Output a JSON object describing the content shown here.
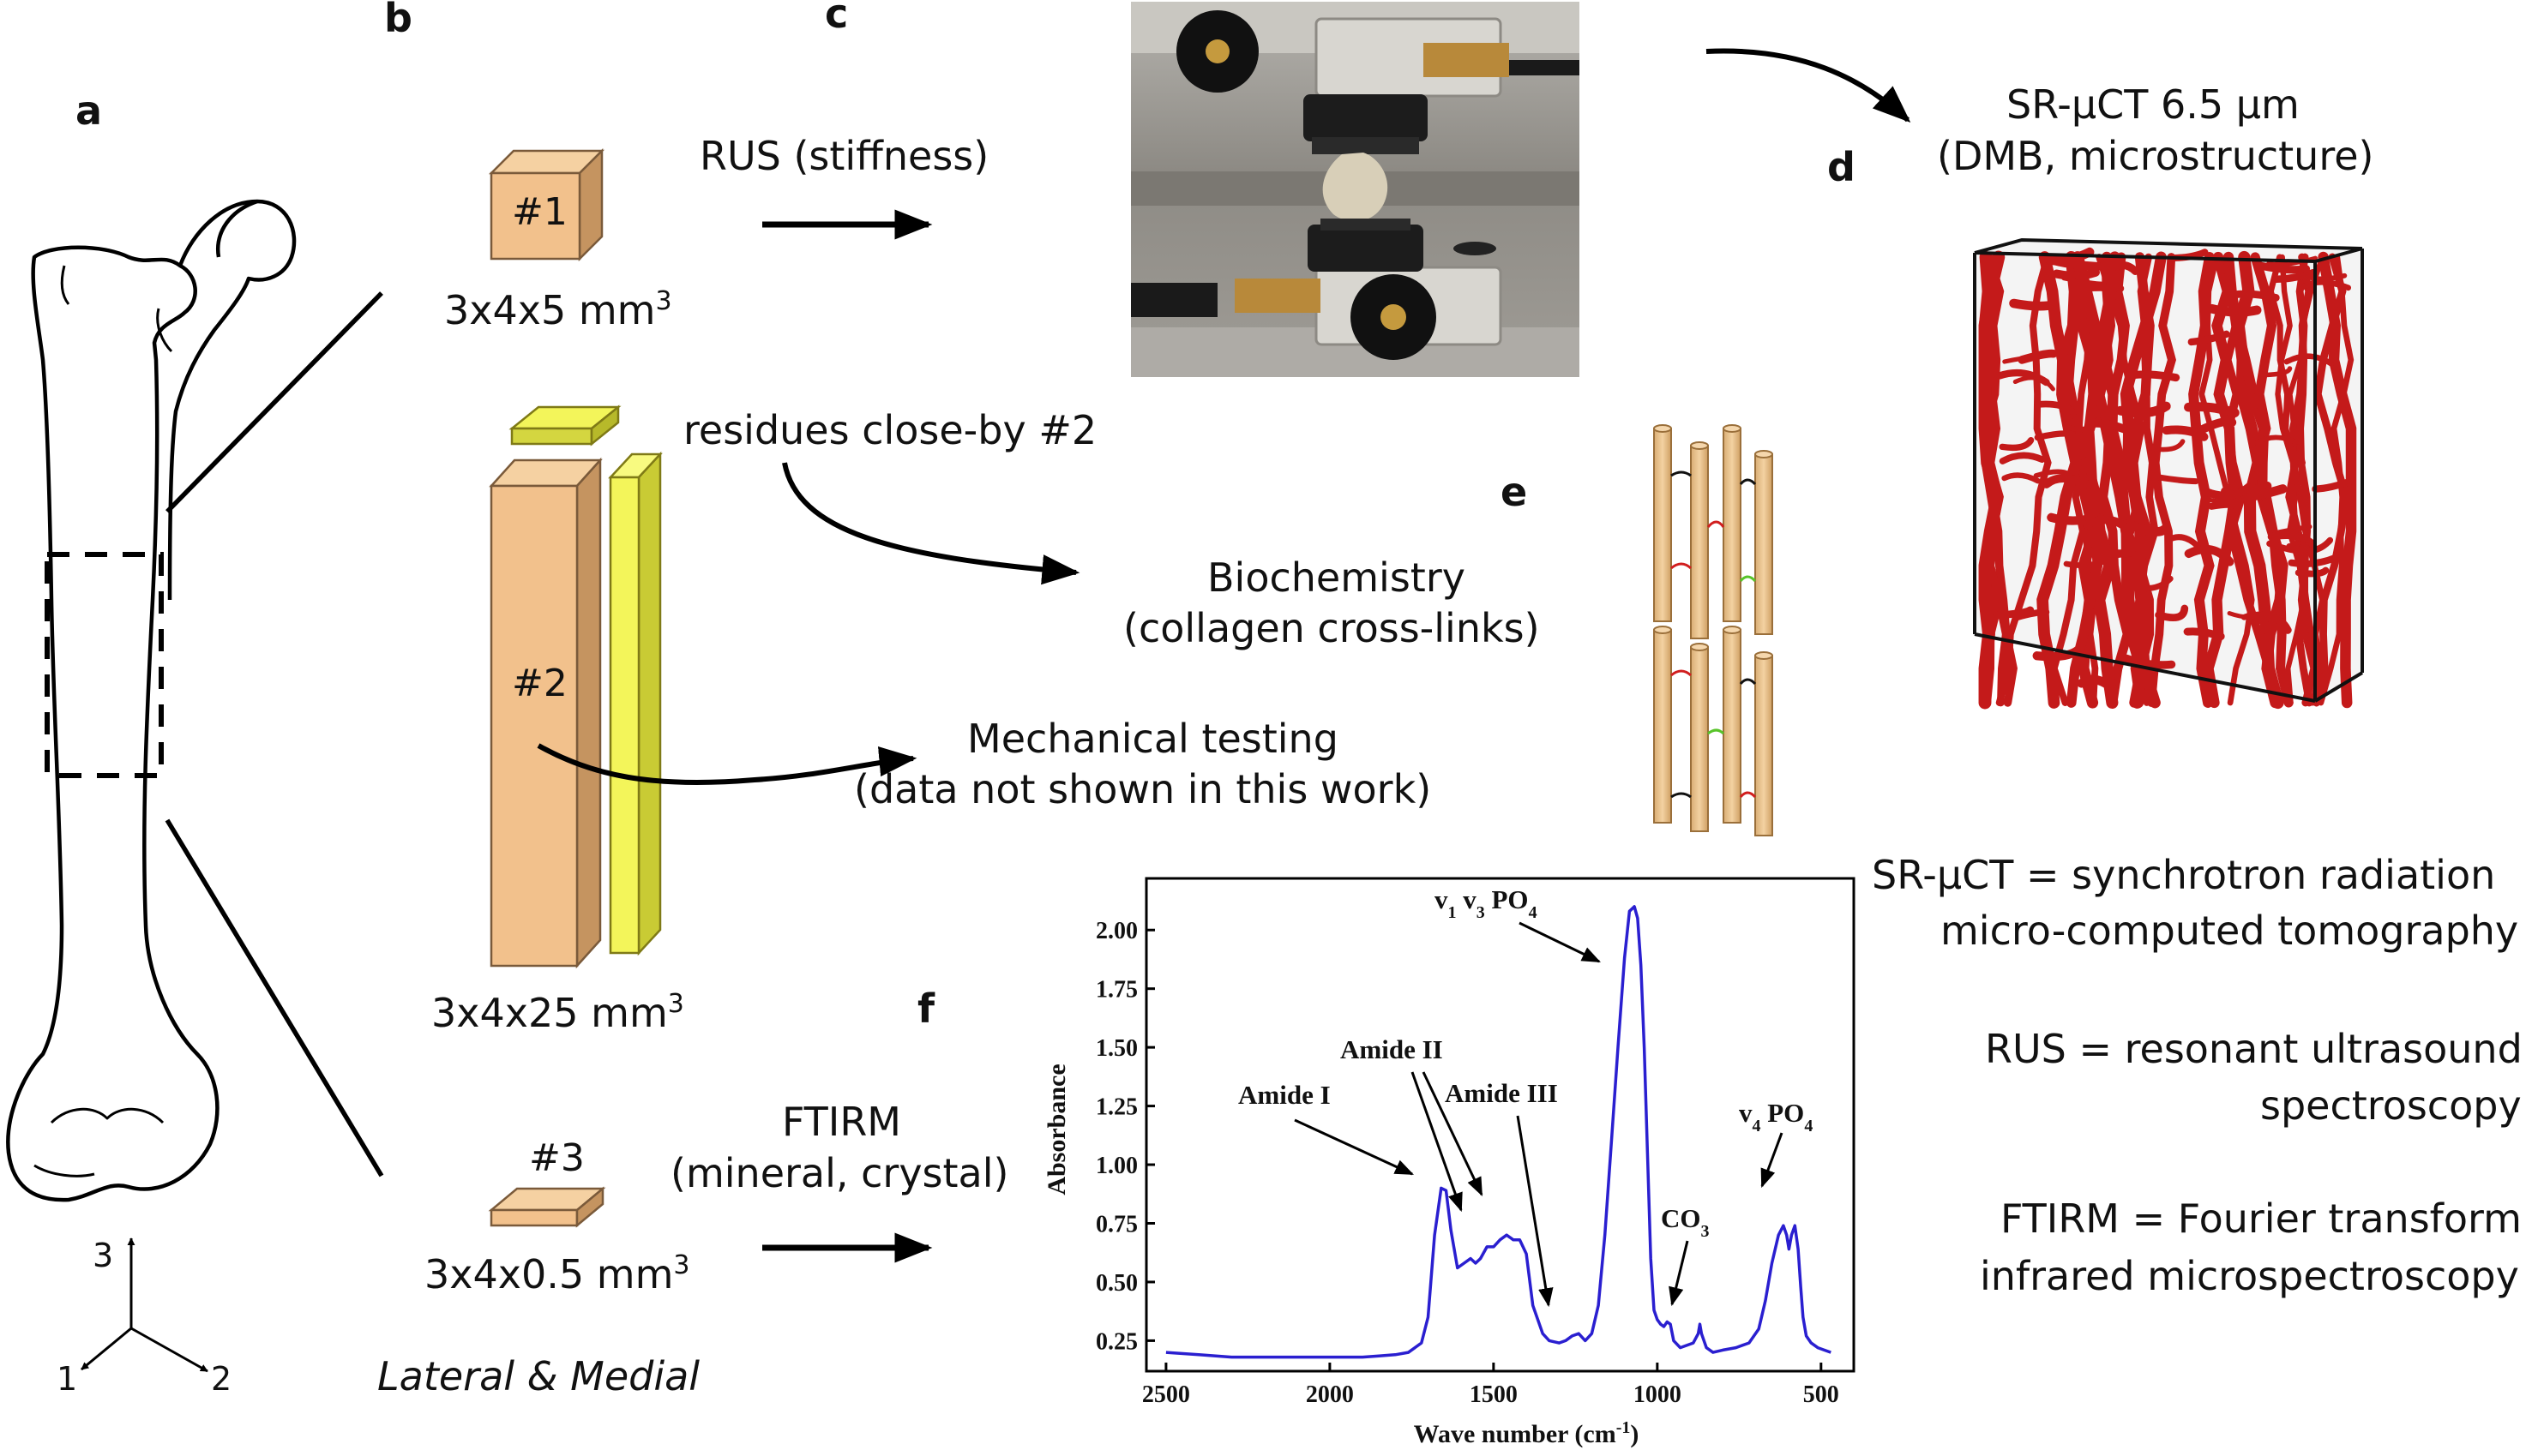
{
  "panels": {
    "a": "a",
    "b": "b",
    "c": "c",
    "d": "d",
    "e": "e",
    "f": "f"
  },
  "samples": {
    "s1": {
      "label": "#1",
      "dims": "3x4x5 mm",
      "exp": "3"
    },
    "s2": {
      "label": "#2",
      "dims": "3x4x25 mm",
      "exp": "3"
    },
    "s3": {
      "label": "#3",
      "dims": "3x4x0.5 mm",
      "exp": "3"
    },
    "side_note": "Lateral & Medial"
  },
  "axes_triad": {
    "up": "3",
    "left": "1",
    "right": "2"
  },
  "methods": {
    "rus": "RUS (stiffness)",
    "residues": "residues close-by #2",
    "biochem_line1": "Biochemistry",
    "biochem_line2": "(collagen cross-links)",
    "mech_line1": "Mechanical testing",
    "mech_line2": "(data not shown in this work)",
    "ftirm_line1": "FTIRM",
    "ftirm_line2": "(mineral, crystal)",
    "srct_line1": "SR-μCT 6.5 μm",
    "srct_line2": "(DMB, microstructure)"
  },
  "legend": {
    "l1": "SR-μCT = synchrotron radiation",
    "l2": "micro-computed tomography",
    "l3": "RUS = resonant ultrasound",
    "l4": "spectroscopy",
    "l5": "FTIRM = Fourier transform",
    "l6": "infrared microspectroscopy"
  },
  "colors": {
    "bone_sample": "#f2c18c",
    "residue": "#f3f55a",
    "microstructure": "#c41a1a",
    "spectrum": "#2a1fd0",
    "collagen": "#f0c98e"
  },
  "chart_data": {
    "type": "line",
    "xlabel": "Wave number (cm",
    "xlabel_sup": "-1",
    "xlabel_end": ")",
    "ylabel": "Absorbance",
    "xlim": [
      2560,
      400
    ],
    "ylim": [
      0.12,
      2.22
    ],
    "xticks": [
      2500,
      2000,
      1500,
      1000,
      500
    ],
    "yticks": [
      0.25,
      0.5,
      0.75,
      1.0,
      1.25,
      1.5,
      1.75,
      2.0
    ],
    "ytick_labels": [
      "0.25",
      "0.50",
      "0.75",
      "1.00",
      "1.25",
      "1.50",
      "1.75",
      "2.00"
    ],
    "annotations": {
      "amide1": "Amide I",
      "amide2": "Amide II",
      "amide3": "Amide III",
      "v1v3": "v",
      "v1v3_sub1": "1",
      "v1v3_mid": " v",
      "v1v3_sub2": "3",
      "v1v3_end": " PO",
      "v1v3_sub3": "4",
      "co3": "CO",
      "co3_sub": "3",
      "v4": "v",
      "v4_sub": "4",
      "v4_end": " PO",
      "v4_sub2": "4"
    },
    "series": [
      {
        "x": [
          2500,
          2400,
          2300,
          2200,
          2100,
          2000,
          1900,
          1850,
          1800,
          1760,
          1720,
          1700,
          1680,
          1660,
          1645,
          1630,
          1610,
          1590,
          1570,
          1555,
          1540,
          1520,
          1500,
          1480,
          1460,
          1450,
          1440,
          1420,
          1400,
          1380,
          1350,
          1330,
          1300,
          1280,
          1260,
          1240,
          1220,
          1200,
          1180,
          1160,
          1140,
          1120,
          1100,
          1085,
          1070,
          1060,
          1050,
          1040,
          1030,
          1020,
          1010,
          1000,
          990,
          980,
          970,
          960,
          950,
          930,
          910,
          890,
          875,
          870,
          865,
          850,
          830,
          800,
          760,
          720,
          690,
          670,
          650,
          630,
          615,
          605,
          598,
          590,
          580,
          570,
          562,
          555,
          545,
          530,
          510,
          490,
          470
        ],
        "y": [
          0.2,
          0.19,
          0.18,
          0.18,
          0.18,
          0.18,
          0.18,
          0.185,
          0.19,
          0.2,
          0.24,
          0.35,
          0.7,
          0.9,
          0.89,
          0.72,
          0.56,
          0.58,
          0.6,
          0.58,
          0.6,
          0.65,
          0.65,
          0.68,
          0.7,
          0.69,
          0.68,
          0.68,
          0.62,
          0.4,
          0.28,
          0.25,
          0.24,
          0.25,
          0.27,
          0.28,
          0.25,
          0.28,
          0.4,
          0.7,
          1.1,
          1.5,
          1.88,
          2.08,
          2.1,
          2.05,
          1.85,
          1.5,
          1.05,
          0.6,
          0.38,
          0.34,
          0.32,
          0.31,
          0.33,
          0.32,
          0.25,
          0.22,
          0.23,
          0.24,
          0.28,
          0.32,
          0.28,
          0.22,
          0.2,
          0.21,
          0.22,
          0.24,
          0.3,
          0.42,
          0.58,
          0.7,
          0.74,
          0.7,
          0.64,
          0.7,
          0.74,
          0.64,
          0.48,
          0.35,
          0.27,
          0.24,
          0.22,
          0.21,
          0.2
        ]
      }
    ]
  }
}
